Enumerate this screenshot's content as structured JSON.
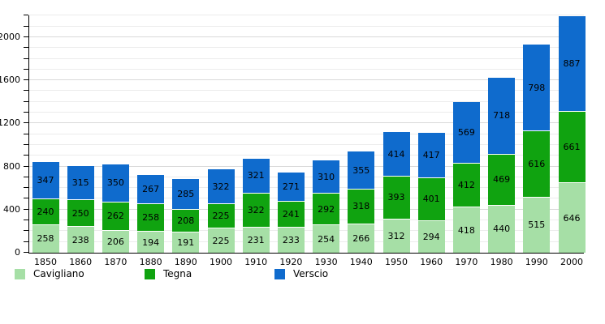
{
  "chart_data": {
    "type": "bar",
    "stacked": true,
    "title": "",
    "xlabel": "",
    "ylabel": "",
    "categories": [
      "1850",
      "1860",
      "1870",
      "1880",
      "1890",
      "1900",
      "1910",
      "1920",
      "1930",
      "1940",
      "1950",
      "1960",
      "1970",
      "1980",
      "1990",
      "2000"
    ],
    "series": [
      {
        "name": "Cavigliano",
        "color": "#a6dfa6",
        "values": [
          258,
          238,
          206,
          194,
          191,
          225,
          231,
          233,
          254,
          266,
          312,
          294,
          418,
          440,
          515,
          646
        ]
      },
      {
        "name": "Tegna",
        "color": "#10a310",
        "values": [
          240,
          250,
          262,
          258,
          208,
          225,
          322,
          241,
          292,
          318,
          393,
          401,
          412,
          469,
          616,
          661
        ]
      },
      {
        "name": "Verscio",
        "color": "#0f6bcd",
        "values": [
          347,
          315,
          350,
          267,
          285,
          322,
          321,
          271,
          310,
          355,
          414,
          417,
          569,
          718,
          798,
          887
        ]
      }
    ],
    "ylim": [
      0,
      2210
    ],
    "yticks": [
      {
        "value": 0,
        "label": "0"
      },
      {
        "value": 400,
        "label": "400"
      },
      {
        "value": 800,
        "label": "800"
      },
      {
        "value": 1200,
        "label": "1200"
      },
      {
        "value": 1600,
        "label": "1600"
      },
      {
        "value": 2000,
        "label": "2000"
      }
    ],
    "minor_tick_step": 100,
    "grid_step": 100,
    "grid": true,
    "legend_position": "bottom",
    "bar_value_labels_visible": true
  },
  "legend": {
    "items": [
      {
        "label": "Cavigliano",
        "color": "#a6dfa6"
      },
      {
        "label": "Tegna",
        "color": "#10a310"
      },
      {
        "label": "Verscio",
        "color": "#0f6bcd"
      }
    ]
  }
}
